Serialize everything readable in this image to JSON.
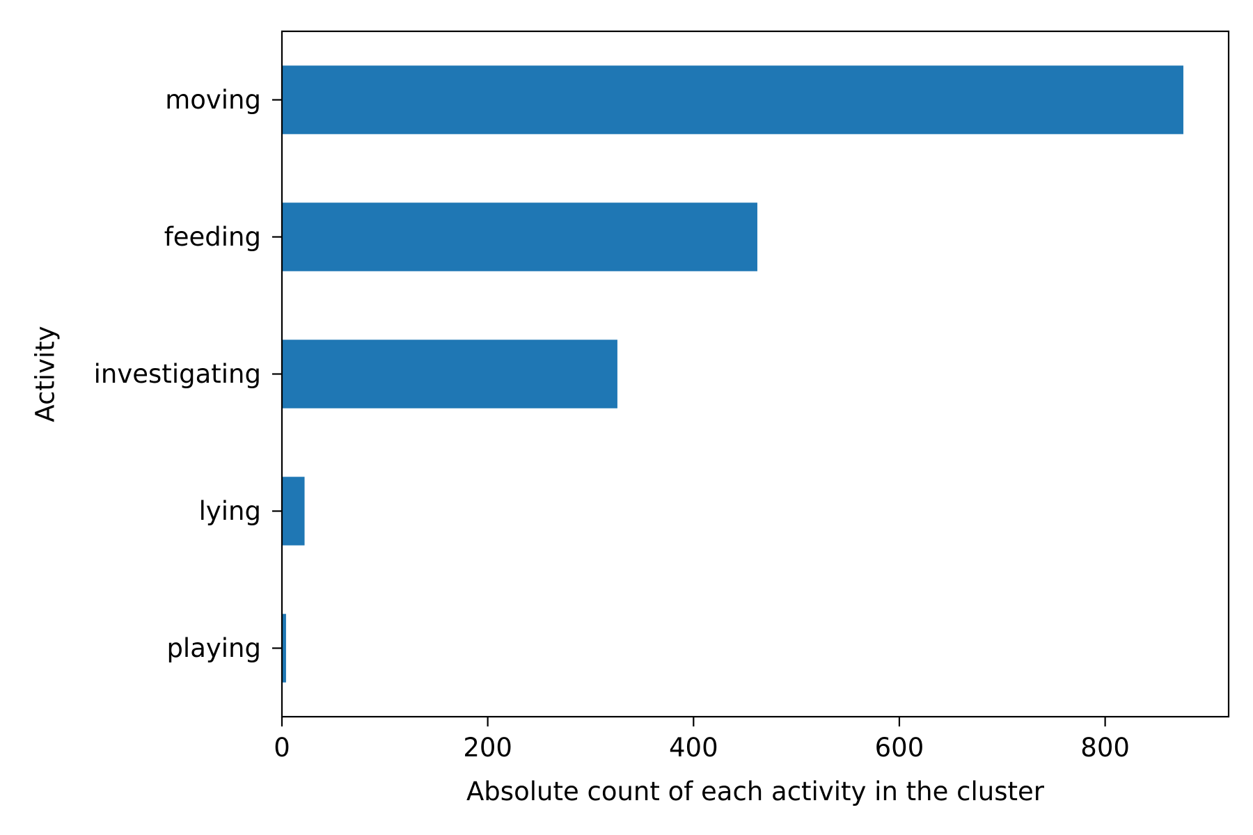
{
  "chart_data": {
    "type": "bar",
    "orientation": "horizontal",
    "categories": [
      "moving",
      "feeding",
      "investigating",
      "lying",
      "playing"
    ],
    "values": [
      876,
      462,
      326,
      22,
      4
    ],
    "title": "",
    "xlabel": "Absolute count of each activity in the cluster",
    "ylabel": "Activity",
    "xlim": [
      0,
      920
    ],
    "xticks": [
      0,
      200,
      400,
      600,
      800
    ],
    "grid": false,
    "bar_color": "#1f77b4"
  }
}
